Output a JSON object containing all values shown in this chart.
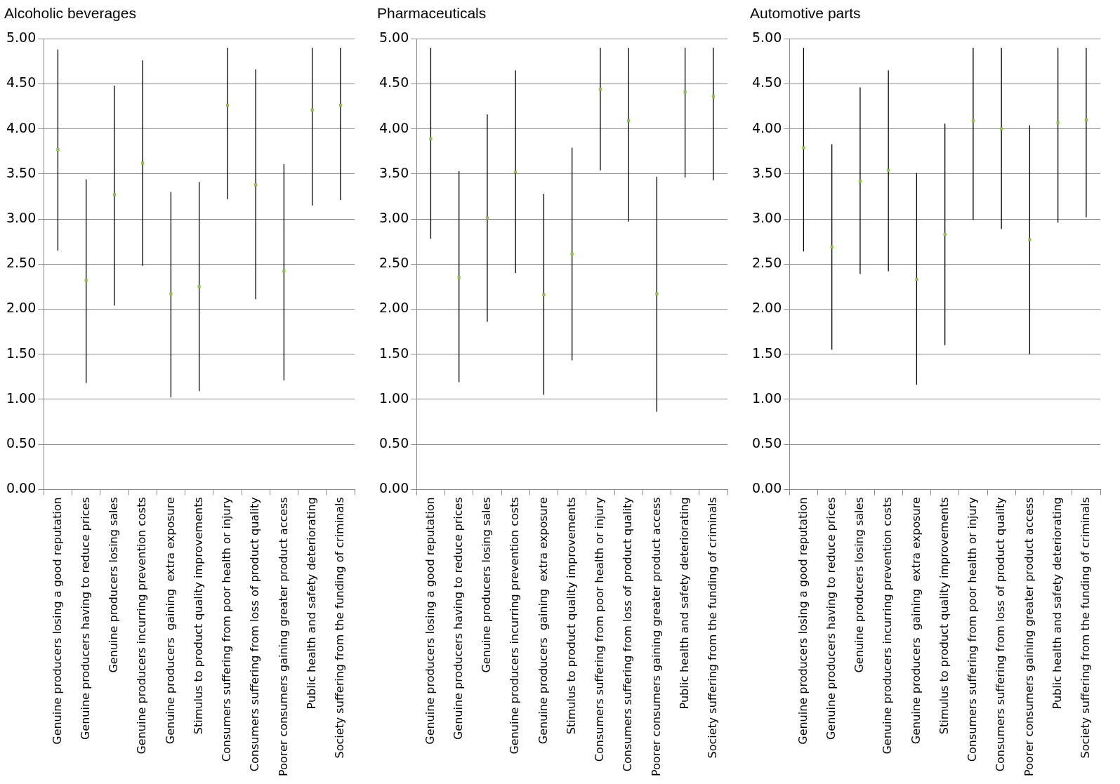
{
  "chart_data": [
    {
      "type": "scatter",
      "title": "Alcoholic beverages",
      "categories": [
        "Genuine producers losing a good reputation",
        "Genuine producers having to reduce prices",
        "Genuine producers losing sales",
        "Genuine producers incurring prevention costs",
        "Genuine producers  gaining  extra exposure",
        "Stimulus to product quality improvements",
        "Consumers suffering from poor health or injury",
        "Consumers suffering from loss of product quality",
        "Poorer consumers gaining greater product access",
        "Public health and safety deteriorating",
        "Society suffering from the funding of criminals"
      ],
      "series": [
        {
          "color": "#92c050",
          "values": [
            3.77,
            2.32,
            3.27,
            3.62,
            2.17,
            2.25,
            4.26,
            3.38,
            2.42,
            4.21,
            4.26
          ],
          "errors": [
            [
              2.65,
              4.88
            ],
            [
              1.18,
              3.44
            ],
            [
              2.04,
              4.48
            ],
            [
              2.48,
              4.76
            ],
            [
              1.02,
              3.3
            ],
            [
              1.09,
              3.41
            ],
            [
              3.22,
              4.9
            ],
            [
              2.11,
              4.66
            ],
            [
              1.21,
              3.61
            ],
            [
              3.15,
              4.9
            ],
            [
              3.21,
              4.9
            ]
          ]
        }
      ],
      "ylim": [
        0,
        5
      ],
      "yticks": [
        {
          "value": 0,
          "label": "0.00"
        },
        {
          "value": 0.5,
          "label": "0.50"
        },
        {
          "value": 1,
          "label": "1.00"
        },
        {
          "value": 1.5,
          "label": "1.50"
        },
        {
          "value": 2,
          "label": "2.00"
        },
        {
          "value": 2.5,
          "label": "2.50"
        },
        {
          "value": 3,
          "label": "3.00"
        },
        {
          "value": 3.5,
          "label": "3.50"
        },
        {
          "value": 4,
          "label": "4.00"
        },
        {
          "value": 4.5,
          "label": "4.50"
        },
        {
          "value": 5,
          "label": "5.00"
        }
      ],
      "grid": "y",
      "marker": "square",
      "legend": false
    },
    {
      "type": "scatter",
      "title": "Pharmaceuticals",
      "categories": [
        "Genuine producers losing a good reputation",
        "Genuine producers having to reduce prices",
        "Genuine producers losing sales",
        "Genuine producers incurring prevention costs",
        "Genuine producers  gaining  extra exposure",
        "Stimulus to product quality improvements",
        "Consumers suffering from poor health or injury",
        "Consumers suffering from loss of product quality",
        "Poorer consumers gaining greater product access",
        "Public health and safety deteriorating",
        "Society suffering from the funding of criminals"
      ],
      "series": [
        {
          "color": "#92c050",
          "values": [
            3.89,
            2.35,
            3.01,
            3.52,
            2.16,
            2.61,
            4.44,
            4.09,
            2.17,
            4.41,
            4.36
          ],
          "errors": [
            [
              2.78,
              4.9
            ],
            [
              1.19,
              3.53
            ],
            [
              1.86,
              4.16
            ],
            [
              2.4,
              4.65
            ],
            [
              1.05,
              3.28
            ],
            [
              1.43,
              3.79
            ],
            [
              3.54,
              4.9
            ],
            [
              2.97,
              4.9
            ],
            [
              0.86,
              3.47
            ],
            [
              3.46,
              4.9
            ],
            [
              3.43,
              4.9
            ]
          ]
        }
      ],
      "ylim": [
        0,
        5
      ],
      "yticks": [
        {
          "value": 0,
          "label": "0.00"
        },
        {
          "value": 0.5,
          "label": "0.50"
        },
        {
          "value": 1,
          "label": "1.00"
        },
        {
          "value": 1.5,
          "label": "1.50"
        },
        {
          "value": 2,
          "label": "2.00"
        },
        {
          "value": 2.5,
          "label": "2.50"
        },
        {
          "value": 3,
          "label": "3.00"
        },
        {
          "value": 3.5,
          "label": "3.50"
        },
        {
          "value": 4,
          "label": "4.00"
        },
        {
          "value": 4.5,
          "label": "4.50"
        },
        {
          "value": 5,
          "label": "5.00"
        }
      ],
      "grid": "y",
      "marker": "square",
      "legend": false
    },
    {
      "type": "scatter",
      "title": "Automotive parts",
      "categories": [
        "Genuine producers losing a good reputation",
        "Genuine producers having to reduce prices",
        "Genuine producers losing sales",
        "Genuine producers incurring prevention costs",
        "Genuine producers  gaining  extra exposure",
        "Stimulus to product quality improvements",
        "Consumers suffering from poor health or injury",
        "Consumers suffering from loss of product quality",
        "Poorer consumers gaining greater product access",
        "Public health and safety deteriorating",
        "Society suffering from the funding of criminals"
      ],
      "series": [
        {
          "color": "#92c050",
          "values": [
            3.79,
            2.69,
            3.42,
            3.54,
            2.33,
            2.83,
            4.09,
            4.0,
            2.77,
            4.07,
            4.1
          ],
          "errors": [
            [
              2.64,
              4.9
            ],
            [
              1.55,
              3.83
            ],
            [
              2.39,
              4.46
            ],
            [
              2.42,
              4.65
            ],
            [
              1.16,
              3.51
            ],
            [
              1.6,
              4.06
            ],
            [
              2.99,
              4.9
            ],
            [
              2.89,
              4.9
            ],
            [
              1.5,
              4.04
            ],
            [
              2.96,
              4.9
            ],
            [
              3.02,
              4.9
            ]
          ]
        }
      ],
      "ylim": [
        0,
        5
      ],
      "yticks": [
        {
          "value": 0,
          "label": "0.00"
        },
        {
          "value": 0.5,
          "label": "0.50"
        },
        {
          "value": 1,
          "label": "1.00"
        },
        {
          "value": 1.5,
          "label": "1.50"
        },
        {
          "value": 2,
          "label": "2.00"
        },
        {
          "value": 2.5,
          "label": "2.50"
        },
        {
          "value": 3,
          "label": "3.00"
        },
        {
          "value": 3.5,
          "label": "3.50"
        },
        {
          "value": 4,
          "label": "4.00"
        },
        {
          "value": 4.5,
          "label": "4.50"
        },
        {
          "value": 5,
          "label": "5.00"
        }
      ],
      "grid": "y",
      "marker": "square",
      "legend": false
    }
  ]
}
